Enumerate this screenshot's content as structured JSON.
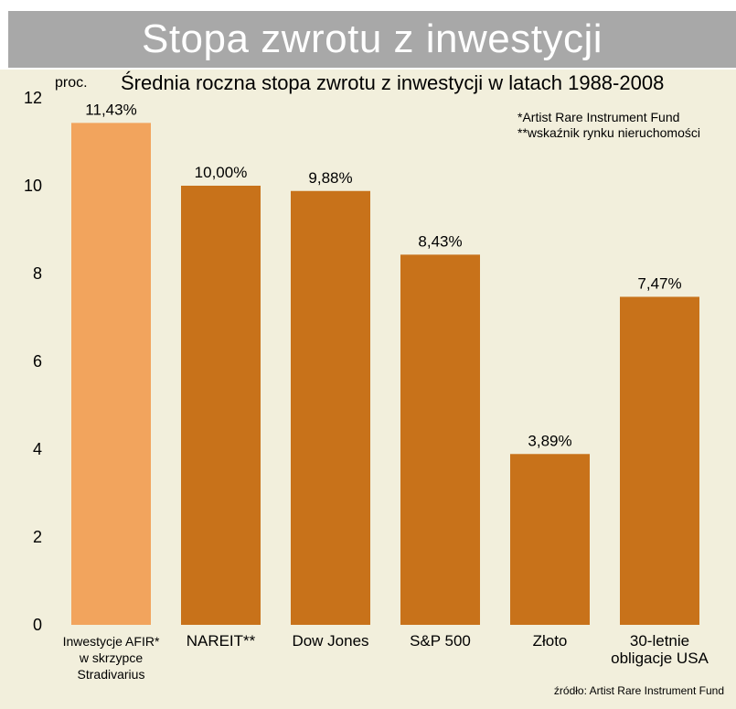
{
  "header": {
    "title": "Stopa zwrotu z inwestycji"
  },
  "chart_data": {
    "type": "bar",
    "title": "Średnia roczna stopa zwrotu z inwestycji w latach 1988-2008",
    "ylabel": "proc.",
    "xlabel": "",
    "ylim": [
      0,
      12
    ],
    "yticks": [
      0,
      2,
      4,
      6,
      8,
      10,
      12
    ],
    "grid": false,
    "categories": [
      [
        "Inwestycje AFIR*",
        "w skrzypce",
        "Stradivarius"
      ],
      [
        "NAREIT**"
      ],
      [
        "Dow Jones"
      ],
      [
        "S&P 500"
      ],
      [
        "Złoto"
      ],
      [
        "30-letnie",
        "obligacje USA"
      ]
    ],
    "values": [
      11.43,
      10.0,
      9.88,
      8.43,
      3.89,
      7.47
    ],
    "value_labels": [
      "11,43%",
      "10,00%",
      "9,88%",
      "8,43%",
      "3,89%",
      "7,47%"
    ],
    "bar_colors": [
      "#f2a45d",
      "#c8721a",
      "#c8721a",
      "#c8721a",
      "#c8721a",
      "#c8721a"
    ],
    "notes": [
      "*Artist Rare Instrument Fund",
      "**wskaźnik rynku nieruchomości"
    ],
    "source": "źródło: Artist Rare Instrument Fund"
  },
  "colors": {
    "background": "#f2efdc",
    "title_bar": "#a8a8a8",
    "highlight_bar": "#f2a45d",
    "bar": "#c8721a"
  }
}
